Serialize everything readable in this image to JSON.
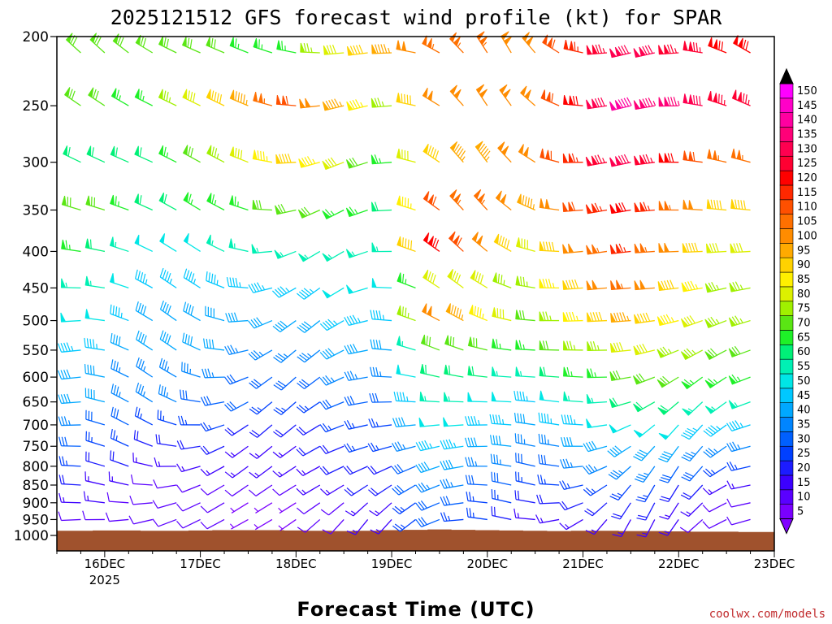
{
  "chart_data": {
    "type": "wind-barb-time-height",
    "title": "2025121512 GFS forecast wind profile (kt) for SPAR",
    "xlabel": "Forecast Time (UTC)",
    "ylabel": "",
    "credit": "coolwx.com/models",
    "x_range_hours": [
      0,
      180
    ],
    "x_ticks": [
      {
        "hour": 12,
        "label": "16DEC",
        "sublabel": "2025"
      },
      {
        "hour": 36,
        "label": "17DEC",
        "sublabel": ""
      },
      {
        "hour": 60,
        "label": "18DEC",
        "sublabel": ""
      },
      {
        "hour": 84,
        "label": "19DEC",
        "sublabel": ""
      },
      {
        "hour": 108,
        "label": "20DEC",
        "sublabel": ""
      },
      {
        "hour": 132,
        "label": "21DEC",
        "sublabel": ""
      },
      {
        "hour": 156,
        "label": "22DEC",
        "sublabel": ""
      },
      {
        "hour": 180,
        "label": "23DEC",
        "sublabel": ""
      }
    ],
    "y_axis": {
      "scale": "log-pressure",
      "range_hpa": [
        1000,
        200
      ]
    },
    "pressure_levels": [
      200,
      250,
      300,
      350,
      400,
      450,
      500,
      550,
      600,
      650,
      700,
      750,
      800,
      850,
      900,
      950,
      1000
    ],
    "hours": [
      0,
      6,
      12,
      18,
      24,
      30,
      36,
      42,
      48,
      54,
      60,
      66,
      72,
      78,
      84,
      90,
      96,
      102,
      108,
      114,
      120,
      126,
      132,
      138,
      144,
      150,
      156,
      162,
      168,
      174,
      180
    ],
    "surface_pressure_hpa": [
      985,
      985,
      984,
      984,
      985,
      985,
      984,
      983,
      983,
      983,
      984,
      985,
      986,
      985,
      983,
      982,
      981,
      982,
      983,
      984,
      985,
      986,
      985,
      985,
      986,
      986,
      987,
      988,
      988,
      989,
      989
    ],
    "speed_profiles": [
      {
        "hour": 0,
        "speeds_kt": [
          70,
          70,
          60,
          75,
          70,
          60,
          55,
          45,
          40,
          40,
          35,
          30,
          25,
          20,
          15,
          10,
          10
        ]
      },
      {
        "hour": 24,
        "speeds_kt": [
          70,
          65,
          60,
          60,
          50,
          45,
          40,
          40,
          35,
          35,
          25,
          20,
          15,
          10,
          10,
          10,
          10
        ]
      },
      {
        "hour": 60,
        "speeds_kt": [
          65,
          110,
          90,
          70,
          55,
          45,
          40,
          35,
          30,
          25,
          20,
          15,
          15,
          10,
          5,
          5,
          5
        ]
      },
      {
        "hour": 84,
        "speeds_kt": [
          95,
          75,
          65,
          60,
          55,
          50,
          45,
          40,
          35,
          30,
          25,
          25,
          20,
          20,
          15,
          15,
          15
        ]
      },
      {
        "hour": 96,
        "speeds_kt": [
          105,
          100,
          90,
          110,
          120,
          80,
          100,
          70,
          60,
          55,
          50,
          45,
          40,
          35,
          30,
          30,
          30
        ]
      },
      {
        "hour": 120,
        "speeds_kt": [
          100,
          100,
          100,
          95,
          80,
          75,
          70,
          65,
          55,
          45,
          40,
          35,
          30,
          25,
          20,
          15,
          15
        ]
      },
      {
        "hour": 144,
        "speeds_kt": [
          130,
          140,
          130,
          120,
          115,
          105,
          95,
          80,
          70,
          60,
          50,
          40,
          35,
          25,
          20,
          15,
          15
        ]
      },
      {
        "hour": 168,
        "speeds_kt": [
          120,
          125,
          105,
          90,
          80,
          75,
          75,
          70,
          65,
          55,
          45,
          35,
          25,
          15,
          10,
          10,
          10
        ]
      }
    ],
    "colorbar": {
      "unit": "kt",
      "values": [
        5,
        10,
        15,
        20,
        25,
        30,
        35,
        40,
        45,
        50,
        55,
        60,
        65,
        70,
        75,
        80,
        85,
        90,
        95,
        100,
        105,
        110,
        115,
        120,
        125,
        130,
        135,
        140,
        145,
        150
      ],
      "colors": [
        "#7a00ff",
        "#5a00ff",
        "#3c00ff",
        "#1c1cff",
        "#0040ff",
        "#0060ff",
        "#0085ff",
        "#00a8ff",
        "#00c8ff",
        "#00e6e6",
        "#00f0b4",
        "#00f078",
        "#1ef028",
        "#5ae614",
        "#a0f000",
        "#dcf000",
        "#fff000",
        "#ffd200",
        "#ffaa00",
        "#ff8c00",
        "#ff7000",
        "#ff5000",
        "#ff2800",
        "#ff0000",
        "#ff0032",
        "#ff0050",
        "#ff0078",
        "#ff00a0",
        "#ff00c8",
        "#ff00ff"
      ]
    },
    "terrain_color": "#a0522d"
  }
}
